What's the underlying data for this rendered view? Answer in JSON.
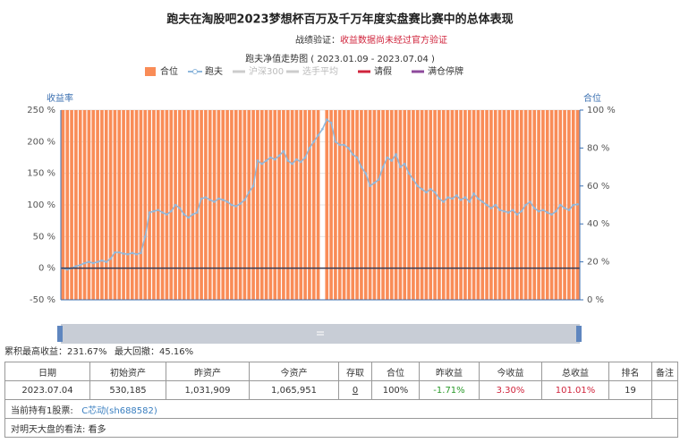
{
  "header": {
    "title": "跑夫在淘股吧2023梦想杯百万及千万年度实盘赛比赛中的总体表现",
    "verify_label": "战绩验证：",
    "verify_text": "收益数据尚未经过官方验证"
  },
  "chart_data": {
    "type": "bar-line",
    "title": "跑夫净值走势图 ( 2023.01.09 - 2023.07.04 )",
    "y_label": "收益率",
    "y2_label": "合位",
    "ylim": [
      -50,
      250
    ],
    "yticks": [
      {
        "value": -50,
        "label": "-50 %"
      },
      {
        "value": 0,
        "label": "0 %"
      },
      {
        "value": 50,
        "label": "50 %"
      },
      {
        "value": 100,
        "label": "100 %"
      },
      {
        "value": 150,
        "label": "150 %"
      },
      {
        "value": 200,
        "label": "200 %"
      },
      {
        "value": 250,
        "label": "250 %"
      }
    ],
    "y2lim": [
      0,
      100
    ],
    "y2ticks": [
      {
        "value": 0,
        "label": "0 %"
      },
      {
        "value": 20,
        "label": "20 %"
      },
      {
        "value": 40,
        "label": "40 %"
      },
      {
        "value": 60,
        "label": "60 %"
      },
      {
        "value": 80,
        "label": "80 %"
      },
      {
        "value": 100,
        "label": "100 %"
      }
    ],
    "series": [
      {
        "name": "合位",
        "color": "#f98c57",
        "axis": "y2",
        "values": [
          100,
          100,
          100,
          100,
          100,
          100,
          100,
          100,
          100,
          100,
          100,
          100,
          100,
          100,
          100,
          100,
          100,
          100,
          100,
          100,
          100,
          100,
          100,
          100,
          100,
          100,
          100,
          100,
          100,
          100,
          100,
          100,
          100,
          100,
          100,
          100,
          100,
          100,
          100,
          100,
          100,
          100,
          100,
          100,
          100,
          100,
          100,
          100,
          100,
          100,
          100,
          100,
          100,
          100,
          100,
          100,
          100,
          100,
          100,
          100,
          0,
          100,
          100,
          100,
          100,
          100,
          100,
          100,
          100,
          100,
          100,
          100,
          100,
          100,
          100,
          100,
          100,
          100,
          100,
          100,
          100,
          100,
          100,
          100,
          100,
          100,
          100,
          100,
          100,
          100,
          100,
          100,
          100,
          100,
          100,
          100,
          100,
          100,
          100,
          100,
          100,
          100,
          100,
          100,
          100,
          100,
          100,
          100,
          100,
          100,
          100,
          100,
          100,
          100,
          100,
          100,
          100,
          100,
          100,
          100
        ]
      },
      {
        "name": "跑夫",
        "color": "#8fb8dc",
        "values": [
          0,
          -2,
          0,
          3,
          5,
          8,
          10,
          8,
          10,
          12,
          10,
          15,
          25,
          25,
          23,
          22,
          24,
          22,
          24,
          50,
          88,
          90,
          92,
          88,
          85,
          90,
          100,
          95,
          85,
          80,
          85,
          88,
          110,
          112,
          108,
          105,
          110,
          108,
          105,
          100,
          98,
          102,
          108,
          120,
          130,
          170,
          165,
          170,
          175,
          172,
          178,
          185,
          170,
          165,
          172,
          168,
          175,
          190,
          200,
          210,
          220,
          235,
          230,
          200,
          195,
          195,
          190,
          180,
          175,
          160,
          150,
          130,
          135,
          140,
          160,
          175,
          170,
          180,
          160,
          165,
          150,
          140,
          130,
          125,
          120,
          125,
          120,
          110,
          105,
          112,
          110,
          115,
          108,
          112,
          105,
          118,
          110,
          105,
          100,
          95,
          100,
          92,
          90,
          88,
          92,
          85,
          90,
          100,
          105,
          95,
          90,
          92,
          88,
          85,
          90,
          100,
          95,
          92,
          100,
          101.01
        ]
      }
    ],
    "legend_items": [
      {
        "name": "沪深300",
        "color": "#cccccc"
      },
      {
        "name": "选手平均",
        "color": "#cccccc"
      },
      {
        "name": "请假",
        "color": "#d0243c"
      },
      {
        "name": "满仓停牌",
        "color": "#8e4a9c"
      }
    ]
  },
  "stats": {
    "max_gain": "累积最高收益：231.67%",
    "max_drawdown": "最大回撤：45.16%"
  },
  "table": {
    "header": [
      "日期",
      "初始资产",
      "昨资产",
      "今资产",
      "存取",
      "合位",
      "昨收益",
      "今收益",
      "总收益",
      "排名",
      "备注"
    ],
    "rows": [
      [
        "2023.07.04",
        "530,185",
        "1,031,909",
        "1,065,951",
        "0",
        "100%",
        "-1.71%",
        "3.30%",
        "101.01%",
        "19"
      ]
    ],
    "holding_label": "当前持有1股票:",
    "holding_stock": "C芯动(sh688582)",
    "view": "对明天大盘的看法: 看多"
  }
}
